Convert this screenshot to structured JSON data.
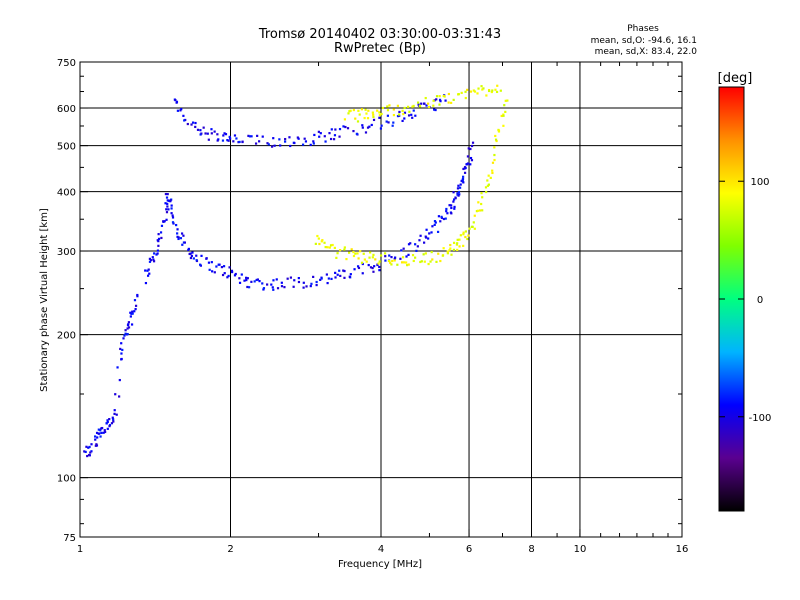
{
  "chart_data": {
    "type": "scatter",
    "title": "Tromsø 20140402 03:30:00-03:31:43",
    "subtitle": "RwPretec (Bp)",
    "xlabel": "Frequency [MHz]",
    "ylabel": "Stationary phase Virtual Height [km]",
    "x_scale": "log",
    "y_scale": "log",
    "xlim": [
      1,
      16
    ],
    "ylim": [
      75,
      750
    ],
    "x_ticks": [
      1,
      2,
      4,
      6,
      8,
      10,
      16
    ],
    "y_ticks": [
      75,
      100,
      200,
      300,
      400,
      500,
      600,
      750
    ],
    "x_gridlines": [
      2,
      4,
      6,
      8,
      10
    ],
    "y_gridlines": [
      100,
      200,
      300,
      400,
      500,
      600
    ],
    "grid": true,
    "legend": {
      "title": "Phases",
      "line1": "mean, sd,O: -94.6, 16.1",
      "line2": "mean, sd,X:  83.4, 22.0"
    },
    "colorbar": {
      "label": "[deg]",
      "range": [
        -180,
        180
      ],
      "ticks": [
        100,
        0,
        -100
      ],
      "tick_labels": [
        "100",
        "0",
        "-100"
      ],
      "colors": [
        "#000000",
        "#5a0090",
        "#0000ff",
        "#00b4ff",
        "#00ff80",
        "#7fff00",
        "#ffff00",
        "#ff9000",
        "#ff0000"
      ]
    },
    "series": [
      {
        "role": "O-mode F trace",
        "phase": -95,
        "x": [
          1.35,
          1.38,
          1.42,
          1.45,
          1.48,
          1.5,
          1.52,
          1.55,
          1.6,
          1.65,
          1.7,
          1.8,
          1.9,
          2.0,
          2.1,
          2.2,
          2.35,
          2.5,
          2.7,
          2.9,
          3.1,
          3.3,
          3.5,
          3.8,
          4.0,
          4.3,
          4.6,
          4.9,
          5.1,
          5.3,
          5.5,
          5.6,
          5.7,
          5.8,
          5.9,
          6.0,
          6.1
        ],
        "y": [
          260,
          285,
          300,
          330,
          360,
          390,
          370,
          340,
          320,
          300,
          290,
          282,
          275,
          270,
          262,
          258,
          256,
          256,
          258,
          260,
          262,
          266,
          270,
          276,
          284,
          292,
          305,
          320,
          335,
          350,
          370,
          385,
          400,
          420,
          445,
          470,
          500
        ]
      },
      {
        "role": "O-mode low-frequency segment",
        "phase": -95,
        "x": [
          1.02,
          1.05,
          1.08,
          1.1,
          1.12,
          1.15,
          1.18,
          1.2,
          1.23,
          1.25,
          1.28,
          1.3
        ],
        "y": [
          113,
          115,
          120,
          125,
          128,
          130,
          135,
          180,
          200,
          210,
          225,
          245
        ]
      },
      {
        "role": "O-mode F2 second echo",
        "phase": -95,
        "x": [
          1.55,
          1.6,
          1.7,
          1.8,
          1.9,
          2.0,
          2.1,
          2.3,
          2.5,
          2.7,
          2.9,
          3.1,
          3.3,
          3.6,
          3.9,
          4.2,
          4.5,
          4.8,
          5.1,
          5.4
        ],
        "y": [
          620,
          580,
          545,
          530,
          520,
          515,
          512,
          510,
          512,
          514,
          518,
          525,
          533,
          545,
          555,
          565,
          580,
          595,
          610,
          630
        ]
      },
      {
        "role": "X-mode F trace",
        "phase": 85,
        "x": [
          2.95,
          3.1,
          3.3,
          3.5,
          3.7,
          3.9,
          4.2,
          4.5,
          4.8,
          5.1,
          5.4,
          5.6,
          5.8,
          6.0,
          6.2,
          6.4,
          6.6,
          6.8,
          7.0,
          7.2
        ],
        "y": [
          320,
          305,
          298,
          295,
          292,
          290,
          288,
          287,
          288,
          292,
          298,
          305,
          315,
          330,
          355,
          390,
          440,
          500,
          570,
          640
        ]
      },
      {
        "role": "X-mode second echo",
        "phase": 85,
        "x": [
          3.4,
          3.6,
          3.8,
          4.0,
          4.3,
          4.6,
          5.0,
          5.4,
          5.8,
          6.2,
          6.6,
          7.0
        ],
        "y": [
          575,
          580,
          585,
          590,
          597,
          605,
          615,
          625,
          640,
          650,
          660,
          670
        ]
      }
    ]
  }
}
